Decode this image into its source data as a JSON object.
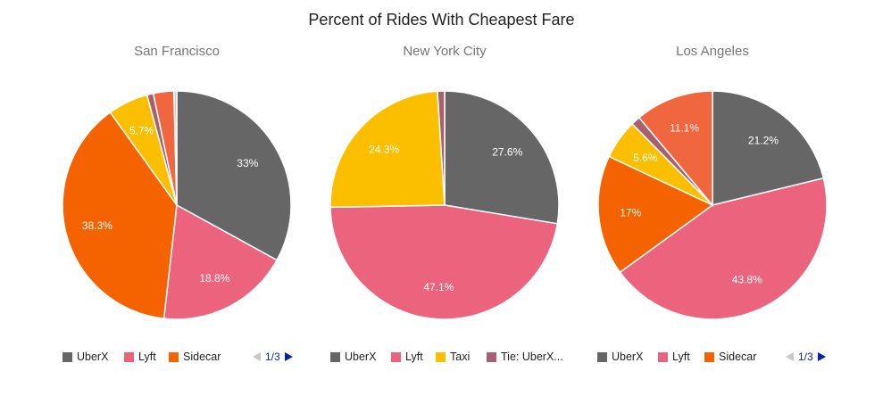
{
  "title": "Percent of Rides With Cheapest Fare",
  "chart_data": [
    {
      "type": "pie",
      "title": "San Francisco",
      "slices": [
        {
          "name": "UberX",
          "value": 33,
          "label": "33%",
          "color": "#666666"
        },
        {
          "name": "Lyft",
          "value": 18.8,
          "label": "18.8%",
          "color": "#ec637e"
        },
        {
          "name": "Sidecar",
          "value": 38.3,
          "label": "38.3%",
          "color": "#f56200"
        },
        {
          "name": "",
          "value": 5.7,
          "label": "5.7%",
          "color": "#fcbf00"
        },
        {
          "name": "",
          "value": 0.9,
          "label": "",
          "color": "#a85f70"
        },
        {
          "name": "",
          "value": 2.9,
          "label": "",
          "color": "#f0663e"
        },
        {
          "name": "",
          "value": 0.4,
          "label": "",
          "color": "#c9c9c9"
        }
      ],
      "legend": {
        "position": "bottom",
        "items": [
          "UberX",
          "Lyft",
          "Sidecar"
        ],
        "page": "1/3"
      }
    },
    {
      "type": "pie",
      "title": "New York City",
      "slices": [
        {
          "name": "UberX",
          "value": 27.6,
          "label": "27.6%",
          "color": "#666666"
        },
        {
          "name": "Lyft",
          "value": 47.1,
          "label": "47.1%",
          "color": "#ec637e"
        },
        {
          "name": "Taxi",
          "value": 24.3,
          "label": "24.3%",
          "color": "#fcbf00"
        },
        {
          "name": "Tie: UberX...",
          "value": 1.0,
          "label": "",
          "color": "#a85f70"
        }
      ],
      "legend": {
        "position": "bottom",
        "items": [
          "UberX",
          "Lyft",
          "Taxi",
          "Tie: UberX..."
        ],
        "page": ""
      }
    },
    {
      "type": "pie",
      "title": "Los Angeles",
      "slices": [
        {
          "name": "UberX",
          "value": 21.2,
          "label": "21.2%",
          "color": "#666666"
        },
        {
          "name": "Lyft",
          "value": 43.8,
          "label": "43.8%",
          "color": "#ec637e"
        },
        {
          "name": "Sidecar",
          "value": 17,
          "label": "17%",
          "color": "#f56200"
        },
        {
          "name": "",
          "value": 5.6,
          "label": "5.6%",
          "color": "#fcbf00"
        },
        {
          "name": "",
          "value": 1.3,
          "label": "",
          "color": "#a85f70"
        },
        {
          "name": "",
          "value": 11.1,
          "label": "11.1%",
          "color": "#f0663e"
        }
      ],
      "legend": {
        "position": "bottom",
        "items": [
          "UberX",
          "Lyft",
          "Sidecar"
        ],
        "page": "1/3"
      }
    }
  ]
}
